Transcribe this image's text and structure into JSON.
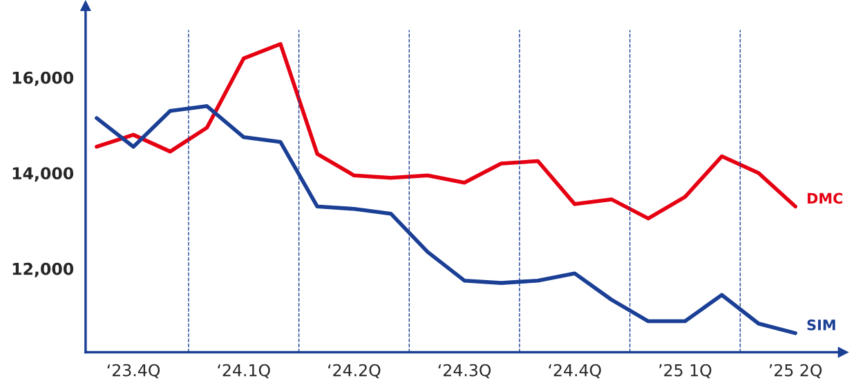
{
  "chart_data": {
    "type": "line",
    "categories": [
      null,
      "‘23.4Q",
      null,
      null,
      "‘24.1Q",
      null,
      null,
      "‘24.2Q",
      null,
      null,
      "‘24.3Q",
      null,
      null,
      "‘24.4Q",
      null,
      null,
      "’25 1Q",
      null,
      null,
      "’25 2Q"
    ],
    "series": [
      {
        "name": "DMC",
        "color": "#e50012",
        "values": [
          14550,
          14800,
          14450,
          14950,
          16400,
          16700,
          14400,
          13950,
          13900,
          13950,
          13800,
          14200,
          14250,
          13350,
          13450,
          13050,
          13500,
          14350,
          14000,
          13300
        ]
      },
      {
        "name": "SIM",
        "color": "#1a3f95",
        "values": [
          15150,
          14550,
          15300,
          15400,
          14750,
          14650,
          13300,
          13250,
          13150,
          12350,
          11750,
          11700,
          11750,
          11900,
          11350,
          10900,
          10900,
          11450,
          10850,
          10650
        ]
      }
    ],
    "ylim": [
      10250,
      17500
    ],
    "yticks": [
      {
        "value": 12000,
        "label": "12,000"
      },
      {
        "value": 14000,
        "label": "14,000"
      },
      {
        "value": 16000,
        "label": "16,000"
      }
    ],
    "grid": false,
    "legend": false,
    "marker": "none",
    "line_style": "solid"
  }
}
